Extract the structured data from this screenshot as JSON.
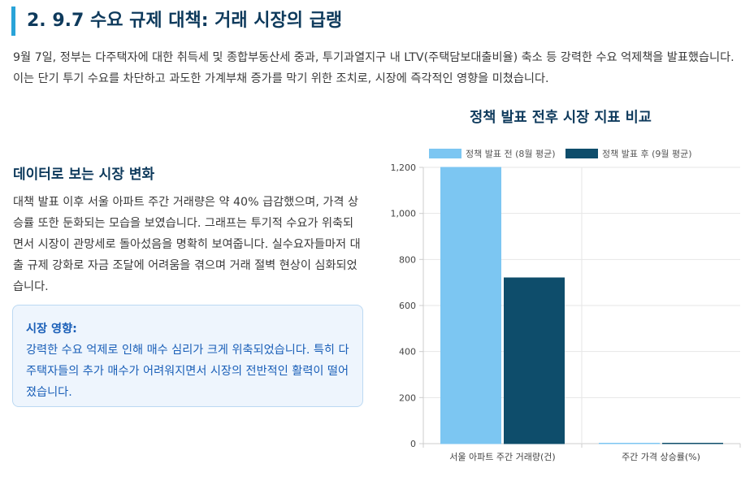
{
  "section": {
    "title": "2. 9.7 수요 규제 대책: 거래 시장의 급랭"
  },
  "intro": {
    "text": "9월 7일, 정부는 다주택자에 대한 취득세 및 종합부동산세 중과, 투기과열지구 내 LTV(주택담보대출비율) 축소 등 강력한 수요 억제책을 발표했습니다. 이는 단기 투기 수요를 차단하고 과도한 가계부채 증가를 막기 위한 조치로, 시장에 즉각적인 영향을 미쳤습니다."
  },
  "analysis": {
    "title": "데이터로 보는 시장 변화",
    "text": "대책 발표 이후 서울 아파트 주간 거래량은 약 40% 급감했으며, 가격 상승률 또한 둔화되는 모습을 보였습니다. 그래프는 투기적 수요가 위축되면서 시장이 관망세로 돌아섰음을 명확히 보여줍니다. 실수요자들마저 대출 규제 강화로 자금 조달에 어려움을 겪으며 거래 절벽 현상이 심화되었습니다."
  },
  "impact": {
    "title": "시장 영향:",
    "text": "강력한 수요 억제로 인해 매수 심리가 크게 위축되었습니다. 특히 다주택자들의 추가 매수가 어려워지면서 시장의 전반적인 활력이 떨어졌습니다."
  },
  "chart_data": {
    "type": "bar",
    "title": "정책 발표 전후 시장 지표 비교",
    "categories": [
      "서울 아파트 주간 거래량(건)",
      "주간 가격 상승률(%)"
    ],
    "series": [
      {
        "name": "정책 발표 전 (8월 평균)",
        "values": [
          1200,
          0.3
        ],
        "color": "#7cc6f2"
      },
      {
        "name": "정책 발표 후 (9월 평균)",
        "values": [
          720,
          0.1
        ],
        "color": "#0e4d6b"
      }
    ],
    "ylim": [
      0,
      1200
    ],
    "yticks": [
      0,
      200,
      400,
      600,
      800,
      1000,
      1200
    ],
    "ytick_labels": [
      "0",
      "200",
      "400",
      "600",
      "800",
      "1,000",
      "1,200"
    ],
    "grid": true,
    "legend_position": "top"
  }
}
